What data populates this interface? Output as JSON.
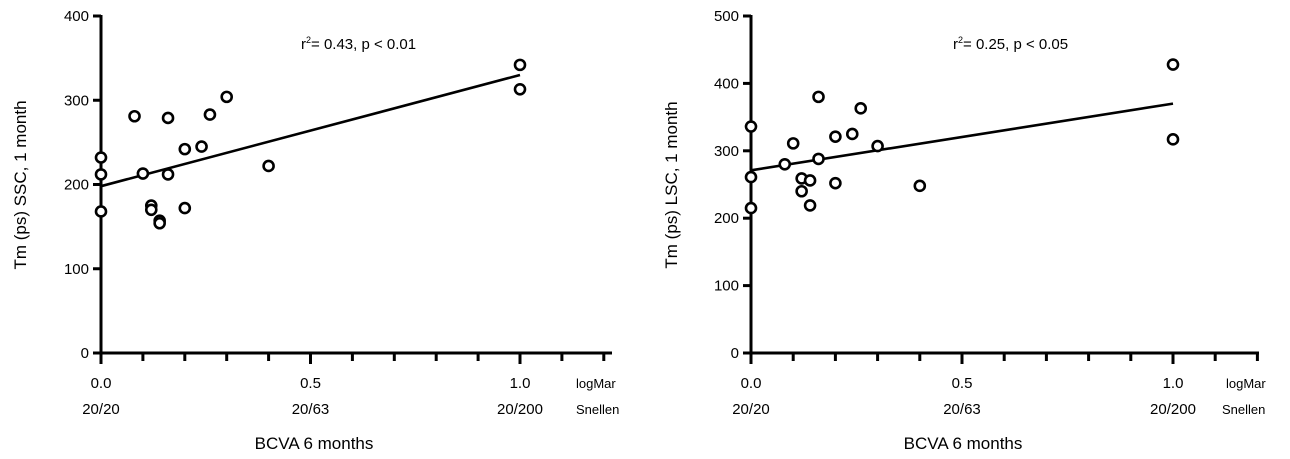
{
  "chart_data": [
    {
      "type": "scatter",
      "xlabel": "BCVA 6 months",
      "ylabel": "Tm (ps) SSC, 1 month",
      "xlim": [
        0,
        1.2
      ],
      "ylim": [
        0,
        400
      ],
      "y_ticks": [
        0,
        100,
        200,
        300,
        400
      ],
      "x_ticks": [
        {
          "value": 0.0,
          "logmar": "0.0",
          "snellen": "20/20"
        },
        {
          "value": 0.5,
          "logmar": "0.5",
          "snellen": "20/63"
        },
        {
          "value": 1.0,
          "logmar": "1.0",
          "snellen": "20/200"
        }
      ],
      "x_minor_step": 0.1,
      "scale_labels": {
        "logmar": "logMar",
        "snellen": "Snellen"
      },
      "annotation": {
        "r": "r",
        "sup": "2",
        "rest": "= 0.43, p < 0.01"
      },
      "points": [
        {
          "x": 0.0,
          "y": 232
        },
        {
          "x": 0.0,
          "y": 212
        },
        {
          "x": 0.0,
          "y": 168
        },
        {
          "x": 0.08,
          "y": 281
        },
        {
          "x": 0.1,
          "y": 213
        },
        {
          "x": 0.12,
          "y": 175
        },
        {
          "x": 0.12,
          "y": 170
        },
        {
          "x": 0.14,
          "y": 157
        },
        {
          "x": 0.14,
          "y": 154
        },
        {
          "x": 0.16,
          "y": 279
        },
        {
          "x": 0.16,
          "y": 212
        },
        {
          "x": 0.2,
          "y": 242
        },
        {
          "x": 0.2,
          "y": 172
        },
        {
          "x": 0.24,
          "y": 245
        },
        {
          "x": 0.26,
          "y": 283
        },
        {
          "x": 0.3,
          "y": 304
        },
        {
          "x": 0.4,
          "y": 222
        },
        {
          "x": 1.0,
          "y": 342
        },
        {
          "x": 1.0,
          "y": 313
        }
      ],
      "fit_line": [
        {
          "x": 0.0,
          "y": 198
        },
        {
          "x": 1.0,
          "y": 330
        }
      ]
    },
    {
      "type": "scatter",
      "xlabel": "BCVA 6 months",
      "ylabel": "Tm (ps) LSC, 1 month",
      "xlim": [
        0,
        1.2
      ],
      "ylim": [
        0,
        500
      ],
      "y_ticks": [
        0,
        100,
        200,
        300,
        400,
        500
      ],
      "x_ticks": [
        {
          "value": 0.0,
          "logmar": "0.0",
          "snellen": "20/20"
        },
        {
          "value": 0.5,
          "logmar": "0.5",
          "snellen": "20/63"
        },
        {
          "value": 1.0,
          "logmar": "1.0",
          "snellen": "20/200"
        }
      ],
      "x_minor_step": 0.1,
      "scale_labels": {
        "logmar": "logMar",
        "snellen": "Snellen"
      },
      "annotation": {
        "r": "r",
        "sup": "2",
        "rest": "= 0.25, p < 0.05"
      },
      "points": [
        {
          "x": 0.0,
          "y": 336
        },
        {
          "x": 0.0,
          "y": 261
        },
        {
          "x": 0.0,
          "y": 215
        },
        {
          "x": 0.08,
          "y": 280
        },
        {
          "x": 0.1,
          "y": 311
        },
        {
          "x": 0.12,
          "y": 259
        },
        {
          "x": 0.12,
          "y": 240
        },
        {
          "x": 0.14,
          "y": 256
        },
        {
          "x": 0.14,
          "y": 219
        },
        {
          "x": 0.16,
          "y": 380
        },
        {
          "x": 0.16,
          "y": 288
        },
        {
          "x": 0.2,
          "y": 321
        },
        {
          "x": 0.2,
          "y": 252
        },
        {
          "x": 0.24,
          "y": 325
        },
        {
          "x": 0.26,
          "y": 363
        },
        {
          "x": 0.3,
          "y": 307
        },
        {
          "x": 0.4,
          "y": 248
        },
        {
          "x": 1.0,
          "y": 428
        },
        {
          "x": 1.0,
          "y": 317
        }
      ],
      "fit_line": [
        {
          "x": 0.0,
          "y": 271
        },
        {
          "x": 1.0,
          "y": 370
        }
      ]
    }
  ]
}
